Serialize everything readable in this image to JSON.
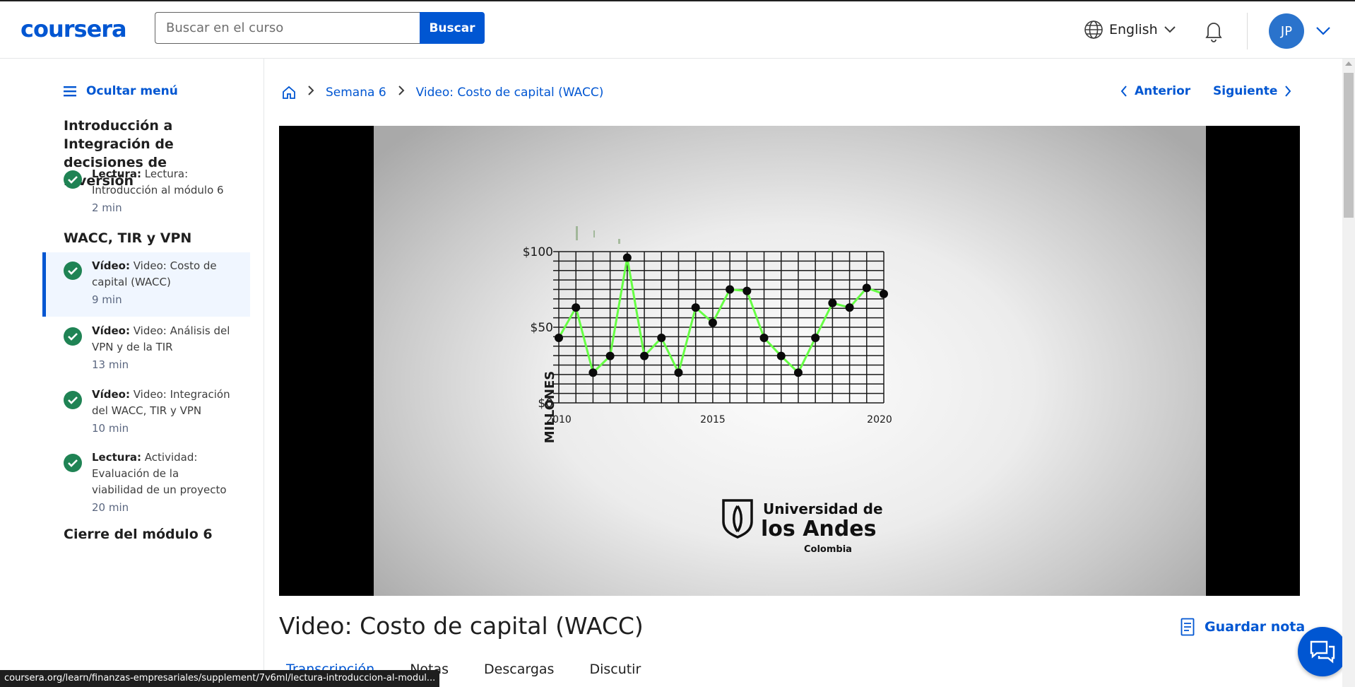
{
  "header": {
    "logo": "coursera",
    "search_placeholder": "Buscar en el curso",
    "search_button": "Buscar",
    "language": "English",
    "avatar_initials": "JP"
  },
  "sidebar": {
    "hide_menu": "Ocultar menú",
    "module_title": "Introducción a Integración de decisiones de inversión",
    "items_intro": [
      {
        "type": "Lectura:",
        "title": "Lectura: Introducción al módulo 6",
        "duration": "2 min",
        "completed": true
      }
    ],
    "section_title": "WACC, TIR y VPN",
    "items": [
      {
        "type": "Vídeo:",
        "title": "Video: Costo de capital (WACC)",
        "duration": "9 min",
        "completed": true,
        "active": true
      },
      {
        "type": "Vídeo:",
        "title": "Video: Análisis del VPN y de la TIR",
        "duration": "13 min",
        "completed": true
      },
      {
        "type": "Vídeo:",
        "title": "Video: Integración del WACC, TIR y VPN",
        "duration": "10 min",
        "completed": true
      },
      {
        "type": "Lectura:",
        "title": "Actividad: Evaluación de la viabilidad de un proyecto",
        "duration": "20 min",
        "completed": true
      }
    ],
    "closing_section": "Cierre del módulo 6"
  },
  "breadcrumb": {
    "week": "Semana 6",
    "current": "Video: Costo de capital (WACC)"
  },
  "nav": {
    "previous": "Anterior",
    "next": "Siguiente"
  },
  "video_content": {
    "chart_data": {
      "type": "line",
      "ylabel": "MILLONES",
      "y_ticks": [
        "$100",
        "$50",
        "$0"
      ],
      "x_ticks": [
        "2010",
        "2015",
        "2020"
      ],
      "ylim": [
        0,
        100
      ],
      "line_color": "#66ff44",
      "values": [
        43,
        63,
        20,
        31,
        96,
        31,
        43,
        20,
        63,
        53,
        75,
        74,
        43,
        31,
        20,
        43,
        66,
        63,
        76,
        72
      ]
    },
    "logo_line1": "Universidad de",
    "logo_line2": "los Andes",
    "logo_line3": "Colombia"
  },
  "main": {
    "title": "Video: Costo de capital (WACC)",
    "save_note": "Guardar nota",
    "tabs": [
      "Transcripción",
      "Notas",
      "Descargas",
      "Discutir"
    ]
  },
  "status_url": "coursera.org/learn/finanzas-empresariales/supplement/7v6ml/lectura-introduccion-al-modul..."
}
